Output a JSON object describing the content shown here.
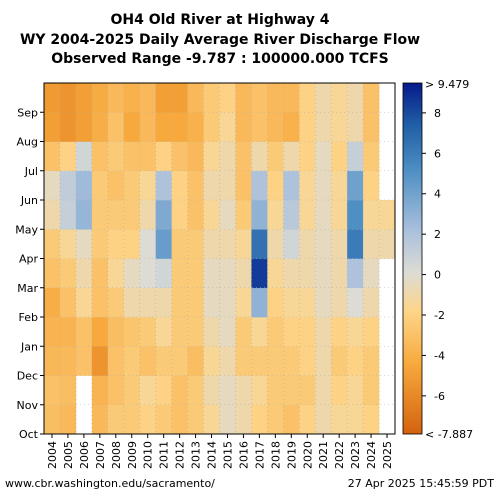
{
  "chart_data": {
    "type": "heatmap",
    "title_lines": [
      "OH4 Old River at Highway 4",
      "WY 2004-2025 Daily Average River Discharge Flow",
      "Observed Range -9.787 : 100000.000 TCFS"
    ],
    "x_categories": [
      "2004",
      "2005",
      "2006",
      "2007",
      "2008",
      "2009",
      "2010",
      "2011",
      "2012",
      "2013",
      "2014",
      "2015",
      "2016",
      "2017",
      "2018",
      "2019",
      "2020",
      "2021",
      "2022",
      "2023",
      "2024",
      "2025"
    ],
    "y_months": [
      "Oct",
      "Nov",
      "Dec",
      "Jan",
      "Feb",
      "Mar",
      "Apr",
      "May",
      "Jun",
      "Jul",
      "Aug",
      "Sep"
    ],
    "colorbar": {
      "min_label": "< -7.887",
      "max_label": "> 9.479",
      "vmin": -7.887,
      "vmax": 9.479,
      "ticks": [
        "8",
        "6",
        "4",
        "2",
        "0",
        "-2",
        "-4",
        "-6"
      ],
      "tick_values": [
        8,
        6,
        4,
        2,
        0,
        -2,
        -4,
        -6
      ]
    },
    "monthly_median_estimates": [
      {
        "year": "2004",
        "values": [
          -3.2,
          -3.0,
          -3.6,
          -3.8,
          -4.2,
          -3.0,
          -2.5,
          -1.0,
          -0.5,
          -3.0,
          -5.0,
          -5.2
        ]
      },
      {
        "year": "2005",
        "values": [
          -3.5,
          -3.2,
          -3.5,
          -3.8,
          -3.0,
          -2.5,
          -1.5,
          1.0,
          1.2,
          -2.0,
          -5.5,
          -5.5
        ]
      },
      {
        "year": "2006",
        "values": [
          null,
          null,
          -3.0,
          -3.0,
          -1.5,
          -1.0,
          -0.5,
          2.8,
          2.5,
          0.5,
          -5.0,
          -5.0
        ]
      },
      {
        "year": "2007",
        "values": [
          -3.5,
          -3.8,
          -5.5,
          -4.5,
          -3.0,
          -3.0,
          -2.5,
          -2.5,
          -2.5,
          -3.0,
          -4.2,
          -4.3
        ]
      },
      {
        "year": "2008",
        "values": [
          -2.5,
          -3.0,
          -3.0,
          -3.2,
          -2.5,
          -1.5,
          -2.0,
          -2.5,
          -3.0,
          -2.5,
          -3.0,
          -3.5
        ]
      },
      {
        "year": "2009",
        "values": [
          -2.5,
          -2.5,
          -2.5,
          -2.8,
          -1.0,
          -0.5,
          -2.0,
          -2.5,
          -2.5,
          -3.0,
          -4.5,
          -4.0
        ]
      },
      {
        "year": "2010",
        "values": [
          -2.0,
          -1.5,
          -3.0,
          -2.5,
          -1.0,
          0.0,
          0.0,
          -1.0,
          -1.5,
          -3.0,
          -3.5,
          -3.5
        ]
      },
      {
        "year": "2011",
        "values": [
          -2.5,
          -2.0,
          -2.5,
          -1.5,
          -1.0,
          0.5,
          4.2,
          3.5,
          2.0,
          -2.0,
          -4.5,
          -5.0
        ]
      },
      {
        "year": "2012",
        "values": [
          -3.0,
          -3.0,
          -2.5,
          -2.5,
          -2.5,
          -2.5,
          -2.5,
          -2.0,
          -2.0,
          -3.0,
          -4.5,
          -5.0
        ]
      },
      {
        "year": "2013",
        "values": [
          -2.5,
          -2.5,
          -3.2,
          -2.5,
          -2.5,
          -2.5,
          -2.5,
          -3.0,
          -3.0,
          -3.5,
          -4.0,
          -3.5
        ]
      },
      {
        "year": "2014",
        "values": [
          -1.5,
          -1.0,
          -1.5,
          -1.0,
          -0.5,
          -0.5,
          -1.0,
          -1.5,
          -1.0,
          -1.5,
          -2.5,
          -2.5
        ]
      },
      {
        "year": "2015",
        "values": [
          -0.5,
          -0.5,
          -1.0,
          -0.5,
          -0.5,
          -0.5,
          -1.0,
          -0.5,
          -1.0,
          -1.0,
          -1.5,
          -2.0
        ]
      },
      {
        "year": "2016",
        "values": [
          -1.0,
          -1.0,
          -2.5,
          -2.5,
          -1.5,
          -1.0,
          -1.5,
          -2.5,
          -3.0,
          -3.0,
          -3.5,
          -3.5
        ]
      },
      {
        "year": "2017",
        "values": [
          -2.0,
          -1.5,
          -2.5,
          -1.5,
          3.0,
          8.5,
          6.5,
          3.0,
          2.0,
          -1.0,
          -3.0,
          -3.0
        ]
      },
      {
        "year": "2018",
        "values": [
          -2.5,
          -2.5,
          -2.5,
          -2.5,
          -2.0,
          -1.5,
          -1.0,
          -1.5,
          -2.0,
          -2.5,
          -3.5,
          -3.5
        ]
      },
      {
        "year": "2019",
        "values": [
          -3.0,
          -2.5,
          -2.5,
          -2.0,
          -1.5,
          -1.0,
          0.5,
          1.5,
          2.0,
          -1.0,
          -4.0,
          -3.5
        ]
      },
      {
        "year": "2020",
        "values": [
          -2.0,
          -2.5,
          -2.0,
          -2.0,
          -1.5,
          -1.0,
          -1.0,
          -1.5,
          -1.5,
          -2.0,
          -2.0,
          -2.0
        ]
      },
      {
        "year": "2021",
        "values": [
          -1.0,
          -1.0,
          -1.0,
          -1.0,
          -0.5,
          -0.5,
          -0.5,
          -0.5,
          -0.5,
          -0.5,
          -1.0,
          -1.0
        ]
      },
      {
        "year": "2022",
        "values": [
          -1.5,
          -2.0,
          -2.5,
          -2.0,
          -1.0,
          -1.0,
          -1.0,
          -1.5,
          -1.5,
          -2.0,
          -1.5,
          -1.5
        ]
      },
      {
        "year": "2023",
        "values": [
          -1.5,
          -1.5,
          -2.0,
          -1.5,
          0.0,
          2.0,
          6.0,
          5.0,
          4.0,
          1.0,
          -1.0,
          -1.0
        ]
      },
      {
        "year": "2024",
        "values": [
          -2.0,
          -2.5,
          -2.5,
          -2.0,
          -1.0,
          -0.5,
          -1.0,
          -1.5,
          -2.0,
          -2.5,
          -3.0,
          -3.0
        ]
      },
      {
        "year": "2025",
        "values": [
          null,
          null,
          null,
          null,
          null,
          null,
          -1.0,
          -1.5,
          null,
          null,
          null,
          null
        ]
      }
    ],
    "xlabel": "",
    "ylabel": "",
    "grid": "dotted"
  },
  "footer": {
    "url": "www.cbr.washington.edu/sacramento/",
    "timestamp": "27 Apr 2025 15:45:59 PDT"
  }
}
